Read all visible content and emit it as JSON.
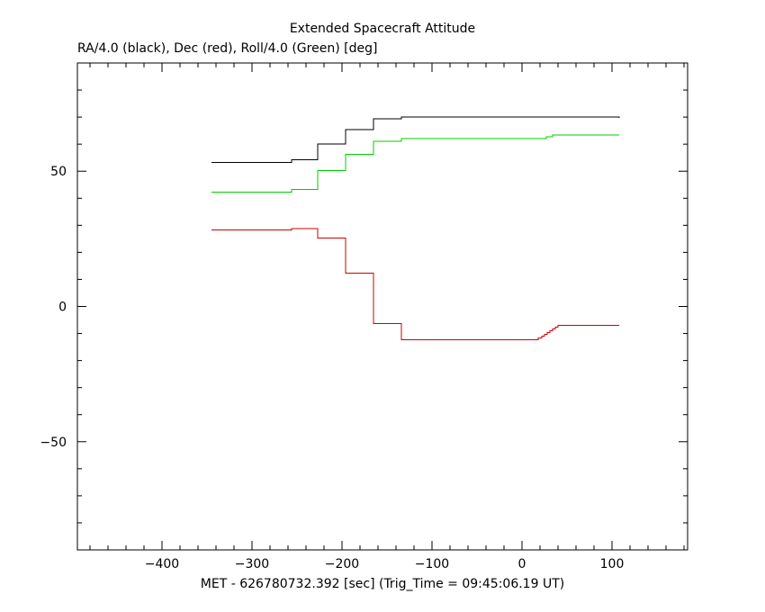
{
  "chart_data": {
    "type": "line",
    "title": "Extended Spacecraft Attitude",
    "subtitle": "RA/4.0 (black), Dec (red), Roll/4.0 (Green) [deg]",
    "xlabel": "MET - 626780732.392 [sec] (Trig_Time = 09:45:06.19 UT)",
    "ylabel": "",
    "xlim": [
      -494,
      184
    ],
    "ylim": [
      -90,
      90
    ],
    "xticks": [
      -400,
      -300,
      -200,
      -100,
      0,
      100
    ],
    "yticks": [
      -50,
      0,
      50
    ],
    "xtick_labels": [
      "−400",
      "−300",
      "−200",
      "−100",
      "0",
      "100"
    ],
    "ytick_labels": [
      "−50",
      "0",
      "50"
    ],
    "legend": "none",
    "grid": false,
    "series": [
      {
        "color": "#000000",
        "step": true,
        "x": [
          -345,
          -258,
          -256,
          -227,
          -196,
          -165,
          -134,
          22,
          108
        ],
        "y": [
          53.3,
          53.3,
          54.3,
          60.0,
          65.3,
          69.3,
          70.0,
          70.0,
          69.7
        ]
      },
      {
        "color": "#00cc00",
        "step": true,
        "x": [
          -345,
          -258,
          -256,
          -227,
          -196,
          -165,
          -134,
          20,
          27,
          34,
          108
        ],
        "y": [
          42.3,
          42.3,
          43.3,
          50.3,
          56.3,
          61.0,
          62.0,
          62.0,
          62.7,
          63.3,
          63.3
        ]
      },
      {
        "color": "#cc0000",
        "step": true,
        "x": [
          -345,
          -258,
          -256,
          -227,
          -196,
          -165,
          -134,
          14,
          18,
          22,
          25,
          28,
          31,
          34,
          37,
          40,
          108
        ],
        "y": [
          28.3,
          28.3,
          28.7,
          25.3,
          12.3,
          -6.3,
          -12.3,
          -12.3,
          -11.7,
          -11.0,
          -10.3,
          -9.7,
          -9.0,
          -8.3,
          -7.7,
          -7.0,
          -7.0
        ]
      }
    ]
  }
}
